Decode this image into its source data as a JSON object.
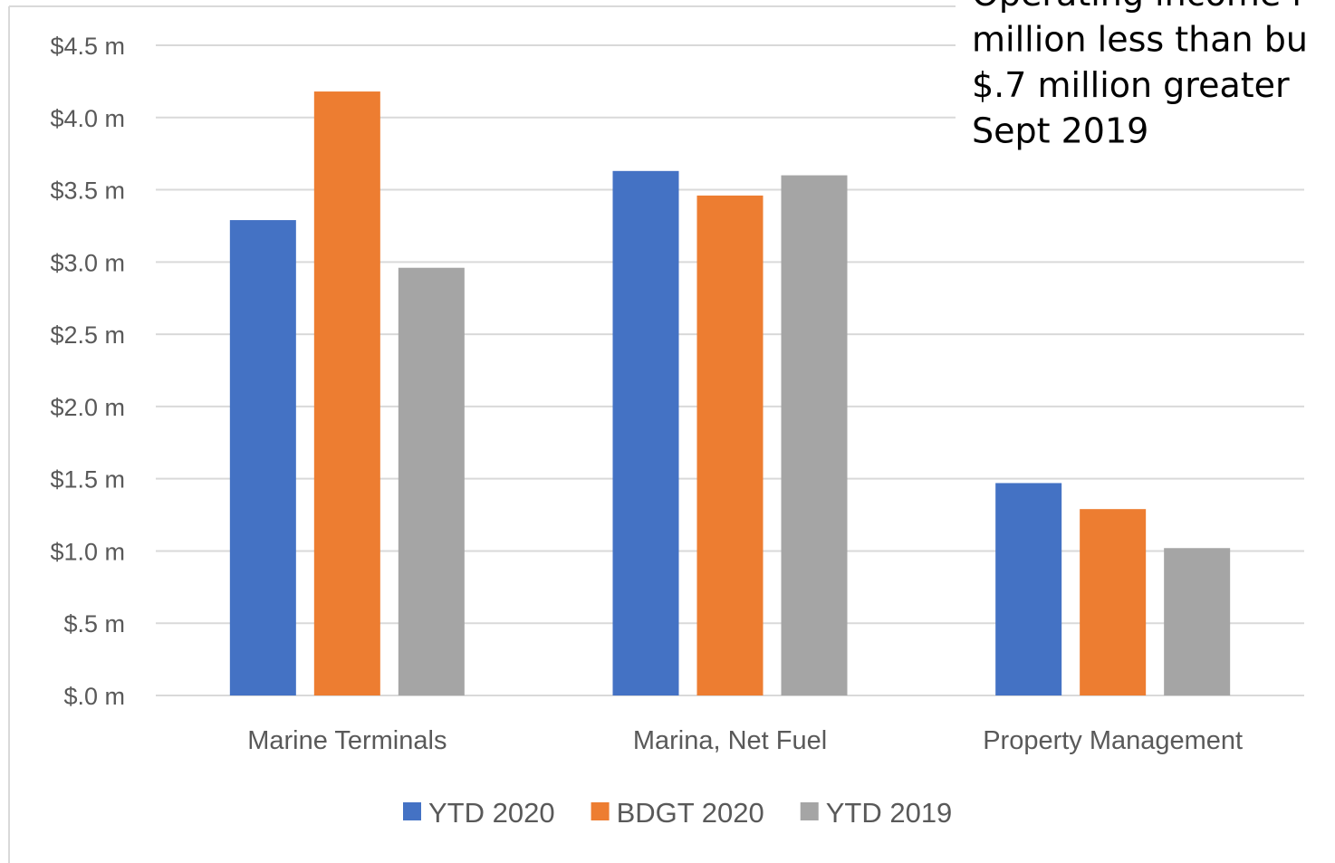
{
  "chart_data": {
    "type": "bar",
    "annotation": [
      "Operating income i",
      "million less than bu",
      "$.7 million greater",
      "Sept 2019"
    ],
    "categories": [
      "Marine Terminals",
      "Marina, Net Fuel",
      "Property Management"
    ],
    "series": [
      {
        "name": "YTD 2020",
        "color": "#4472c4",
        "values": [
          3.29,
          3.63,
          1.47
        ]
      },
      {
        "name": "BDGT 2020",
        "color": "#ed7d31",
        "values": [
          4.18,
          3.46,
          1.29
        ]
      },
      {
        "name": "YTD 2019",
        "color": "#a5a5a5",
        "values": [
          2.96,
          3.6,
          1.02
        ]
      }
    ],
    "ylim": [
      0,
      4.5
    ],
    "yticks": [
      {
        "value": 0,
        "label": "$.0 m"
      },
      {
        "value": 0.5,
        "label": "$.5 m"
      },
      {
        "value": 1,
        "label": "$1.0 m"
      },
      {
        "value": 1.5,
        "label": "$1.5 m"
      },
      {
        "value": 2,
        "label": "$2.0 m"
      },
      {
        "value": 2.5,
        "label": "$2.5 m"
      },
      {
        "value": 3,
        "label": "$3.0 m"
      },
      {
        "value": 3.5,
        "label": "$3.5 m"
      },
      {
        "value": 4,
        "label": "$4.0 m"
      },
      {
        "value": 4.5,
        "label": "$4.5 m"
      }
    ],
    "grid": true,
    "legend": "bottom"
  }
}
